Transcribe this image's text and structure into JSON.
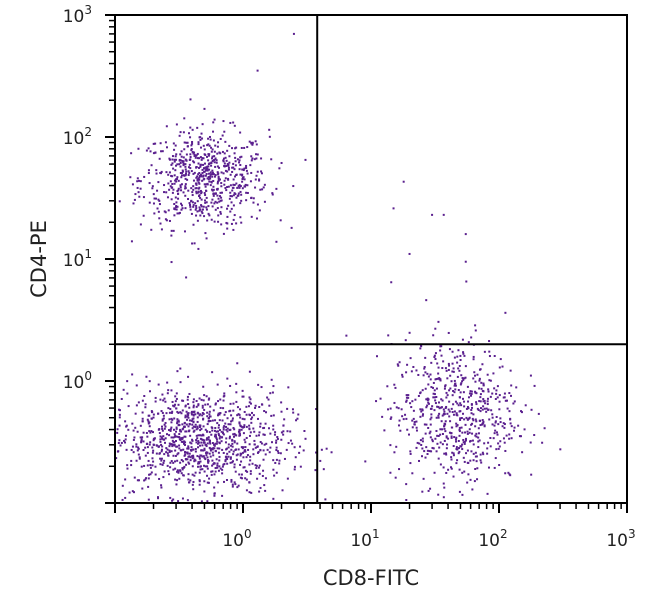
{
  "chart_data": {
    "type": "scatter",
    "xlabel": "CD8-FITC",
    "ylabel": "CD4-PE",
    "xscale": "log",
    "yscale": "log",
    "xlim": [
      0.1,
      1000
    ],
    "ylim": [
      0.1,
      1000
    ],
    "x_tick_labels": [
      {
        "value": 1,
        "base": "10",
        "exp": "0"
      },
      {
        "value": 10,
        "base": "10",
        "exp": "1"
      },
      {
        "value": 100,
        "base": "10",
        "exp": "2"
      },
      {
        "value": 1000,
        "base": "10",
        "exp": "3"
      }
    ],
    "y_tick_labels": [
      {
        "value": 1,
        "base": "10",
        "exp": "0"
      },
      {
        "value": 10,
        "base": "10",
        "exp": "1"
      },
      {
        "value": 100,
        "base": "10",
        "exp": "2"
      },
      {
        "value": 1000,
        "base": "10",
        "exp": "3"
      }
    ],
    "quadrant_gates": {
      "x": 3.8,
      "y": 2.0
    },
    "grid": false,
    "point_color": "#5a1f8e",
    "populations": [
      {
        "quadrant": "upper-left",
        "center": [
          0.5,
          45
        ],
        "spread_decades": [
          0.25,
          0.2
        ],
        "count": 700
      },
      {
        "quadrant": "lower-left",
        "center": [
          0.45,
          0.32
        ],
        "spread_decades": [
          0.35,
          0.22
        ],
        "count": 1100
      },
      {
        "quadrant": "lower-right",
        "center": [
          45,
          0.55
        ],
        "spread_decades": [
          0.25,
          0.3
        ],
        "count": 650
      }
    ],
    "sparse_points": [
      [
        2.5,
        700
      ],
      [
        1.3,
        350
      ],
      [
        0.5,
        170
      ],
      [
        18,
        43
      ],
      [
        15,
        26
      ],
      [
        30,
        23
      ],
      [
        37,
        23
      ],
      [
        55,
        16
      ],
      [
        20,
        11
      ],
      [
        55,
        9.5
      ],
      [
        27,
        4.6
      ]
    ]
  }
}
